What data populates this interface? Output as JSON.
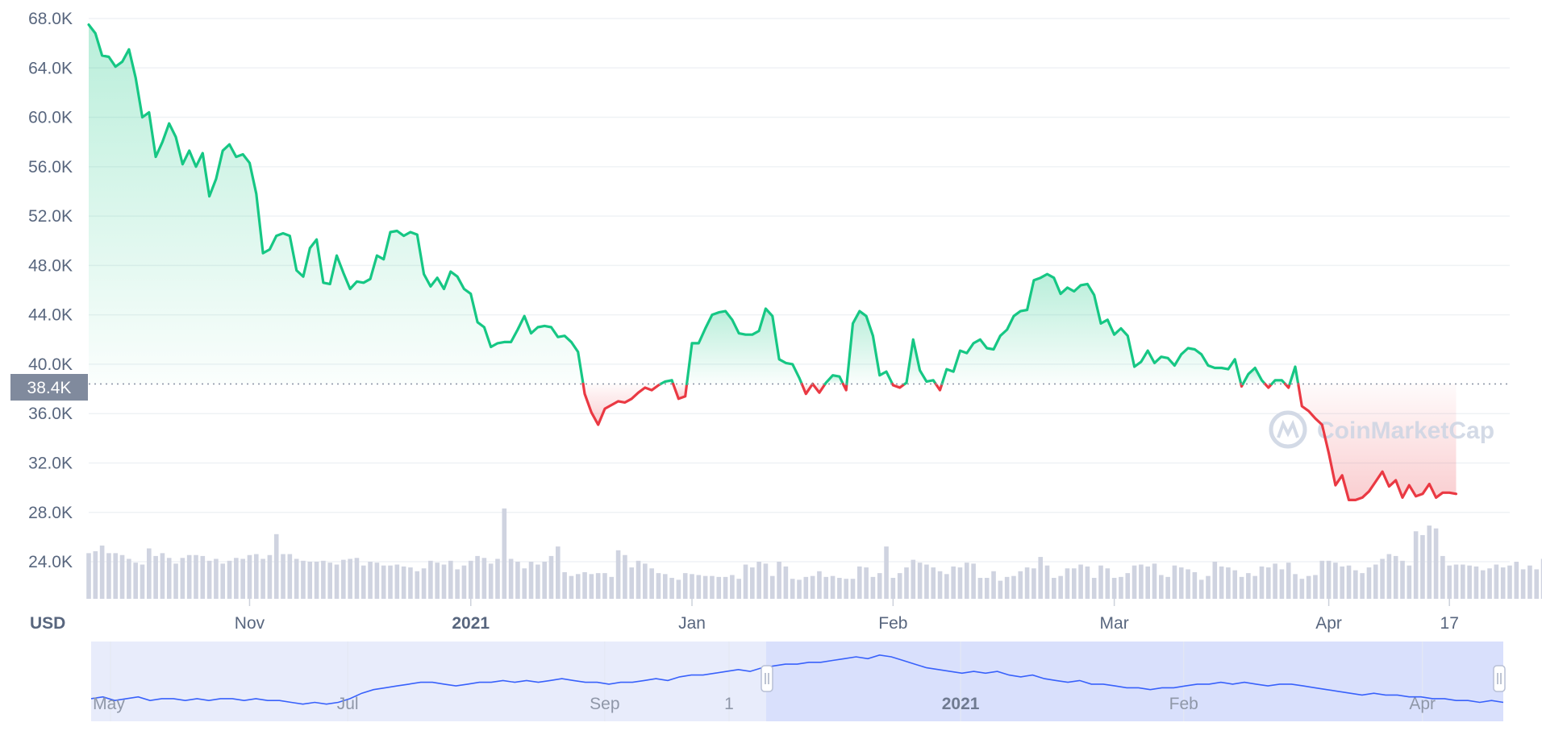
{
  "chart_data": {
    "type": "area",
    "currency_label": "USD",
    "watermark": "CoinMarketCap",
    "reference_price": 38400,
    "reference_label": "38.4K",
    "colors": {
      "up": "#16c784",
      "down": "#ea3943",
      "volume": "#cfd3e0",
      "grid": "#eff2f5",
      "navigator_line": "#3861fb",
      "navigator_fill": "#e8ecfb",
      "navigator_selected": "#d9e0fc",
      "price_tag_bg": "#808a9d"
    },
    "ylim": [
      21000,
      69500
    ],
    "y_ticks": [
      {
        "value": 68000,
        "label": "68.0K"
      },
      {
        "value": 64000,
        "label": "64.0K"
      },
      {
        "value": 60000,
        "label": "60.0K"
      },
      {
        "value": 56000,
        "label": "56.0K"
      },
      {
        "value": 52000,
        "label": "52.0K"
      },
      {
        "value": 48000,
        "label": "48.0K"
      },
      {
        "value": 44000,
        "label": "44.0K"
      },
      {
        "value": 40000,
        "label": "40.0K"
      },
      {
        "value": 36000,
        "label": "36.0K"
      },
      {
        "value": 32000,
        "label": "32.0K"
      },
      {
        "value": 28000,
        "label": "28.0K"
      },
      {
        "value": 24000,
        "label": "24.0K"
      }
    ],
    "x_range": [
      0,
      212
    ],
    "x_ticks": [
      {
        "pos": 24,
        "label": "Nov",
        "bold": false
      },
      {
        "pos": 57,
        "label": "2021",
        "bold": true
      },
      {
        "pos": 90,
        "label": "Jan",
        "bold": false
      },
      {
        "pos": 120,
        "label": "Feb",
        "bold": false
      },
      {
        "pos": 153,
        "label": "Mar",
        "bold": false
      },
      {
        "pos": 185,
        "label": "Apr",
        "bold": false
      },
      {
        "pos": 203,
        "label": "17",
        "bold": false
      }
    ],
    "price": [
      67500,
      66800,
      65000,
      64900,
      64100,
      64500,
      65500,
      63200,
      60000,
      60400,
      56800,
      58000,
      59500,
      58400,
      56200,
      57300,
      56000,
      57100,
      53600,
      55000,
      57300,
      57800,
      56800,
      57000,
      56300,
      53800,
      49000,
      49300,
      50400,
      50600,
      50400,
      47600,
      47100,
      49400,
      50100,
      46600,
      46500,
      48800,
      47400,
      46100,
      46700,
      46600,
      46900,
      48800,
      48500,
      50700,
      50800,
      50400,
      50700,
      50500,
      47300,
      46300,
      47000,
      46100,
      47500,
      47100,
      46100,
      45700,
      43400,
      43000,
      41400,
      41700,
      41800,
      41800,
      42800,
      43900,
      42500,
      43000,
      43100,
      43000,
      42200,
      42300,
      41800,
      41000,
      37600,
      36100,
      35100,
      36400,
      36700,
      37000,
      36900,
      37200,
      37700,
      38100,
      37900,
      38300,
      38600,
      38700,
      37200,
      37400,
      41700,
      41700,
      42900,
      44000,
      44200,
      44300,
      43600,
      42500,
      42400,
      42400,
      42700,
      44500,
      43900,
      40400,
      40100,
      40000,
      38900,
      37600,
      38400,
      37700,
      38500,
      39100,
      39000,
      37900,
      43300,
      44300,
      43900,
      42300,
      39100,
      39400,
      38300,
      38100,
      38500,
      42000,
      39500,
      38600,
      38700,
      37900,
      39600,
      39400,
      41100,
      40900,
      41700,
      42000,
      41300,
      41200,
      42300,
      42800,
      43900,
      44300,
      44400,
      46800,
      47000,
      47300,
      47000,
      45700,
      46200,
      45900,
      46400,
      46500,
      45600,
      43300,
      43600,
      42400,
      42900,
      42300,
      39800,
      40200,
      41100,
      40100,
      40600,
      40500,
      39900,
      40800,
      41300,
      41200,
      40800,
      39900,
      39700,
      39700,
      39600,
      40400,
      38200,
      39200,
      39700,
      38700,
      38100,
      38700,
      38700,
      38100,
      39800,
      36600,
      36200,
      35600,
      35100,
      32800,
      30200,
      31000,
      29000,
      29000,
      29200,
      29700,
      30500,
      31300,
      30100,
      30600,
      29200,
      30200,
      29300,
      29500,
      30300,
      29200,
      29600,
      29600,
      29500
    ],
    "volume": [
      48,
      50,
      56,
      48,
      48,
      46,
      42,
      38,
      36,
      53,
      45,
      48,
      43,
      37,
      43,
      46,
      46,
      45,
      40,
      42,
      37,
      40,
      43,
      42,
      46,
      47,
      42,
      46,
      68,
      47,
      47,
      42,
      40,
      39,
      39,
      40,
      38,
      36,
      41,
      42,
      43,
      35,
      39,
      38,
      35,
      35,
      36,
      34,
      33,
      29,
      32,
      40,
      38,
      36,
      40,
      31,
      35,
      40,
      45,
      43,
      37,
      42,
      95,
      42,
      39,
      32,
      39,
      36,
      39,
      45,
      55,
      28,
      24,
      26,
      28,
      26,
      27,
      27,
      23,
      51,
      46,
      33,
      40,
      37,
      32,
      27,
      26,
      22,
      20,
      27,
      26,
      25,
      24,
      24,
      23,
      23,
      25,
      21,
      36,
      33,
      39,
      37,
      24,
      39,
      34,
      21,
      20,
      23,
      24,
      29,
      23,
      24,
      22,
      21,
      21,
      34,
      33,
      23,
      27,
      55,
      22,
      27,
      33,
      41,
      38,
      36,
      33,
      29,
      26,
      34,
      33,
      38,
      37,
      22,
      22,
      29,
      19,
      23,
      24,
      29,
      33,
      32,
      44,
      35,
      22,
      24,
      32,
      32,
      36,
      34,
      22,
      35,
      32,
      22,
      23,
      27,
      35,
      36,
      34,
      37,
      25,
      23,
      35,
      33,
      31,
      28,
      20,
      24,
      39,
      34,
      33,
      30,
      23,
      27,
      24,
      34,
      33,
      37,
      31,
      38,
      26,
      21,
      24,
      25,
      40,
      40,
      38,
      34,
      35,
      30,
      27,
      33,
      36,
      42,
      47,
      45,
      40,
      35,
      71,
      67,
      77,
      74,
      45,
      35,
      36,
      36,
      35,
      34,
      30,
      32,
      36,
      33,
      35,
      39,
      31,
      35,
      31,
      42
    ],
    "navigator": {
      "series": [
        38,
        39,
        37,
        38,
        39,
        37,
        38,
        38,
        37,
        38,
        37,
        38,
        38,
        37,
        38,
        37,
        37,
        36,
        35,
        36,
        35,
        36,
        38,
        41,
        43,
        44,
        45,
        46,
        47,
        47,
        46,
        45,
        46,
        47,
        47,
        48,
        47,
        48,
        47,
        48,
        49,
        48,
        47,
        47,
        46,
        47,
        47,
        48,
        49,
        48,
        50,
        51,
        51,
        52,
        53,
        54,
        53,
        55,
        56,
        57,
        57,
        58,
        58,
        59,
        60,
        61,
        60,
        62,
        61,
        59,
        57,
        55,
        54,
        53,
        52,
        53,
        52,
        53,
        51,
        50,
        51,
        49,
        48,
        47,
        48,
        46,
        46,
        45,
        44,
        44,
        43,
        44,
        44,
        45,
        46,
        46,
        47,
        46,
        47,
        46,
        45,
        46,
        46,
        45,
        44,
        43,
        42,
        41,
        40,
        41,
        40,
        40,
        39,
        39,
        38,
        38,
        37,
        37,
        36,
        37,
        36
      ],
      "ylim": [
        30,
        65
      ],
      "labels": [
        {
          "pos": 0.0,
          "label": "May",
          "bold": false
        },
        {
          "pos": 0.168,
          "label": "Jul",
          "bold": false
        },
        {
          "pos": 0.35,
          "label": "Sep",
          "bold": false
        },
        {
          "pos": 0.438,
          "label": "1",
          "bold": false
        },
        {
          "pos": 0.602,
          "label": "2021",
          "bold": true
        },
        {
          "pos": 0.76,
          "label": "Feb",
          "bold": false
        },
        {
          "pos": 0.929,
          "label": "Apr",
          "bold": false
        }
      ],
      "selection": [
        0.478,
        1.0
      ]
    }
  }
}
